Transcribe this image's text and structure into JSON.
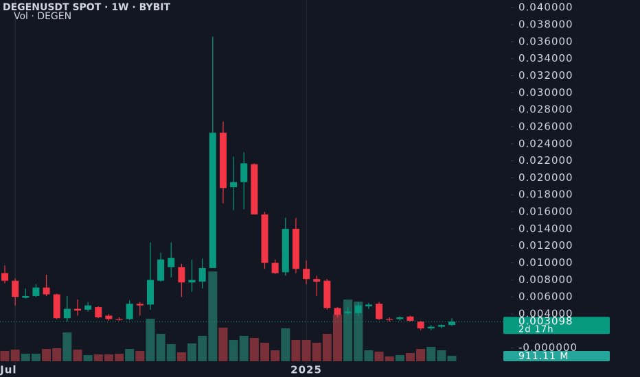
{
  "chart_data": {
    "type": "candlestick",
    "title": "DEGENUSDT SPOT · 1W · BYBIT",
    "subtitle": "Vol · DEGEN",
    "categories": [
      null,
      "Jul",
      null,
      null,
      null,
      null,
      null,
      null,
      null,
      null,
      null,
      null,
      null,
      null,
      null,
      null,
      null,
      null,
      null,
      null,
      null,
      null,
      null,
      null,
      null,
      null,
      null,
      null,
      null,
      "2025",
      null,
      null,
      null,
      null,
      null,
      null,
      null,
      null,
      null,
      null,
      null,
      null,
      null,
      null
    ],
    "open": [
      0.0088,
      0.0079,
      0.0059,
      0.0061,
      0.0071,
      0.0063,
      0.0035,
      0.0046,
      0.0045,
      0.0048,
      0.0038,
      0.0034,
      0.0034,
      0.0052,
      0.0051,
      0.0079,
      0.0095,
      0.0095,
      0.0077,
      0.0078,
      0.0094,
      0.0253,
      0.0189,
      0.0195,
      0.0216,
      0.0157,
      0.01,
      0.0089,
      0.014,
      0.0093,
      0.0081,
      0.0079,
      0.0047,
      0.0041,
      0.0041,
      0.0049,
      0.0052,
      0.0034,
      0.0034,
      0.0037,
      0.0031,
      0.0023,
      0.0025,
      0.0027
    ],
    "high": [
      0.0097,
      0.0082,
      0.007,
      0.0075,
      0.0086,
      0.0064,
      0.0061,
      0.0057,
      0.0054,
      0.0049,
      0.004,
      0.0036,
      0.0056,
      0.0054,
      0.0124,
      0.0112,
      0.0124,
      0.0099,
      0.0104,
      0.0105,
      0.0366,
      0.0266,
      0.0225,
      0.023,
      0.0217,
      0.016,
      0.0104,
      0.0153,
      0.0153,
      0.0103,
      0.0085,
      0.0081,
      0.0048,
      0.0048,
      0.0054,
      0.0053,
      0.0054,
      0.0036,
      0.0037,
      0.0038,
      0.0032,
      0.0027,
      0.0028,
      0.0035
    ],
    "low": [
      0.0076,
      0.005,
      0.0058,
      0.006,
      0.0061,
      0.0034,
      0.0031,
      0.0038,
      0.0043,
      0.0035,
      0.0032,
      0.0032,
      0.0033,
      0.0038,
      0.0045,
      0.0078,
      0.0083,
      0.006,
      0.0066,
      0.007,
      0.0094,
      0.017,
      0.0162,
      0.0163,
      0.0157,
      0.0093,
      0.0087,
      0.0085,
      0.0088,
      0.0075,
      0.0061,
      0.0045,
      0.0036,
      0.0039,
      0.0038,
      0.0046,
      0.0033,
      0.0031,
      0.0032,
      0.0031,
      0.0021,
      0.0021,
      0.0023,
      0.0026
    ],
    "close": [
      0.0079,
      0.006,
      0.0061,
      0.0071,
      0.0063,
      0.0035,
      0.0046,
      0.0044,
      0.005,
      0.0036,
      0.0034,
      0.0033,
      0.0052,
      0.005,
      0.008,
      0.0104,
      0.0106,
      0.0077,
      0.008,
      0.0094,
      0.0253,
      0.0188,
      0.0195,
      0.0217,
      0.0157,
      0.01,
      0.0088,
      0.014,
      0.0093,
      0.0081,
      0.0078,
      0.0047,
      0.0039,
      0.0043,
      0.005,
      0.0051,
      0.0034,
      0.0033,
      0.0036,
      0.0032,
      0.0023,
      0.0025,
      0.0027,
      0.003098
    ],
    "volume": [
      1710,
      1940,
      1250,
      1250,
      2050,
      2170,
      4790,
      1940,
      1030,
      1140,
      1140,
      1250,
      2050,
      1710,
      7070,
      4560,
      2850,
      1480,
      2960,
      4220,
      14930,
      5590,
      3530,
      4220,
      3880,
      3080,
      1820,
      5470,
      3530,
      3530,
      3080,
      4560,
      7750,
      10260,
      9920,
      1820,
      1600,
      800,
      1030,
      1370,
      2050,
      2390,
      1820,
      911.11
    ],
    "last_volume_label": "911.11 M",
    "countdown": "2d 17h",
    "ylim": [
      -0.0018,
      0.0409
    ],
    "yticks": [
      {
        "value": 0.04,
        "label": "0.040000"
      },
      {
        "value": 0.038,
        "label": "0.038000"
      },
      {
        "value": 0.036,
        "label": "0.036000"
      },
      {
        "value": 0.034,
        "label": "0.034000"
      },
      {
        "value": 0.032,
        "label": "0.032000"
      },
      {
        "value": 0.03,
        "label": "0.030000"
      },
      {
        "value": 0.028,
        "label": "0.028000"
      },
      {
        "value": 0.026,
        "label": "0.026000"
      },
      {
        "value": 0.024,
        "label": "0.024000"
      },
      {
        "value": 0.022,
        "label": "0.022000"
      },
      {
        "value": 0.02,
        "label": "0.020000"
      },
      {
        "value": 0.018,
        "label": "0.018000"
      },
      {
        "value": 0.016,
        "label": "0.016000"
      },
      {
        "value": 0.014,
        "label": "0.014000"
      },
      {
        "value": 0.012,
        "label": "0.012000"
      },
      {
        "value": 0.01,
        "label": "0.010000"
      },
      {
        "value": 0.008,
        "label": "0.008000"
      },
      {
        "value": 0.006,
        "label": "0.006000"
      },
      {
        "value": 0.004,
        "label": "0.004000"
      },
      {
        "value": 0,
        "label": "-0.000000"
      }
    ],
    "up_color": "#089981",
    "down_color": "#f23645",
    "volume_up_color": "#1f5f58",
    "volume_down_color": "#7a3039",
    "volume_label_color": "#26a69a"
  }
}
